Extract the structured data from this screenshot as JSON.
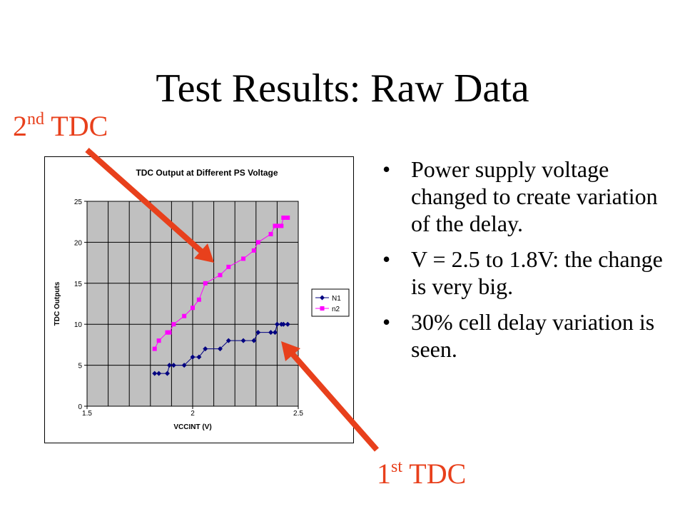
{
  "slide": {
    "title": "Test Results: Raw Data",
    "callout_2nd": {
      "num": "2",
      "sup": "nd",
      "text": " TDC"
    },
    "callout_1st": {
      "num": "1",
      "sup": "st",
      "text": " TDC"
    },
    "bullets": [
      "Power supply voltage changed to create variation of the delay.",
      "V = 2.5 to 1.8V: the change is very big.",
      "30% cell delay variation is seen."
    ],
    "bullet_glyph": "•",
    "accent_color": "#e8401c"
  },
  "chart_data": {
    "type": "line",
    "title": "TDC Output at Different PS Voltage",
    "xlabel": "VCCINT (V)",
    "ylabel": "TDC Outputs",
    "xlim": [
      1.5,
      2.5
    ],
    "ylim": [
      0,
      25
    ],
    "x_ticks": [
      "1.5",
      "2",
      "2.5"
    ],
    "y_ticks": [
      "0",
      "5",
      "10",
      "15",
      "20",
      "25"
    ],
    "grid": true,
    "legend_position": "right",
    "plot_background": "#c0c0c0",
    "series": [
      {
        "name": "N1",
        "color": "#000080",
        "marker": "diamond",
        "x": [
          1.82,
          1.84,
          1.88,
          1.89,
          1.91,
          1.96,
          2.0,
          2.03,
          2.06,
          2.13,
          2.17,
          2.24,
          2.29,
          2.31,
          2.37,
          2.39,
          2.4,
          2.42,
          2.43,
          2.45
        ],
        "y": [
          4,
          4,
          4,
          5,
          5,
          5,
          6,
          6,
          7,
          7,
          8,
          8,
          8,
          9,
          9,
          9,
          10,
          10,
          10,
          10
        ]
      },
      {
        "name": "n2",
        "color": "#ff00ff",
        "marker": "square",
        "x": [
          1.82,
          1.84,
          1.88,
          1.89,
          1.91,
          1.96,
          2.0,
          2.03,
          2.06,
          2.13,
          2.17,
          2.24,
          2.29,
          2.31,
          2.37,
          2.39,
          2.4,
          2.42,
          2.43,
          2.45
        ],
        "y": [
          7,
          8,
          9,
          9,
          10,
          11,
          12,
          13,
          15,
          16,
          17,
          18,
          19,
          20,
          21,
          22,
          22,
          22,
          23,
          23
        ]
      }
    ]
  }
}
